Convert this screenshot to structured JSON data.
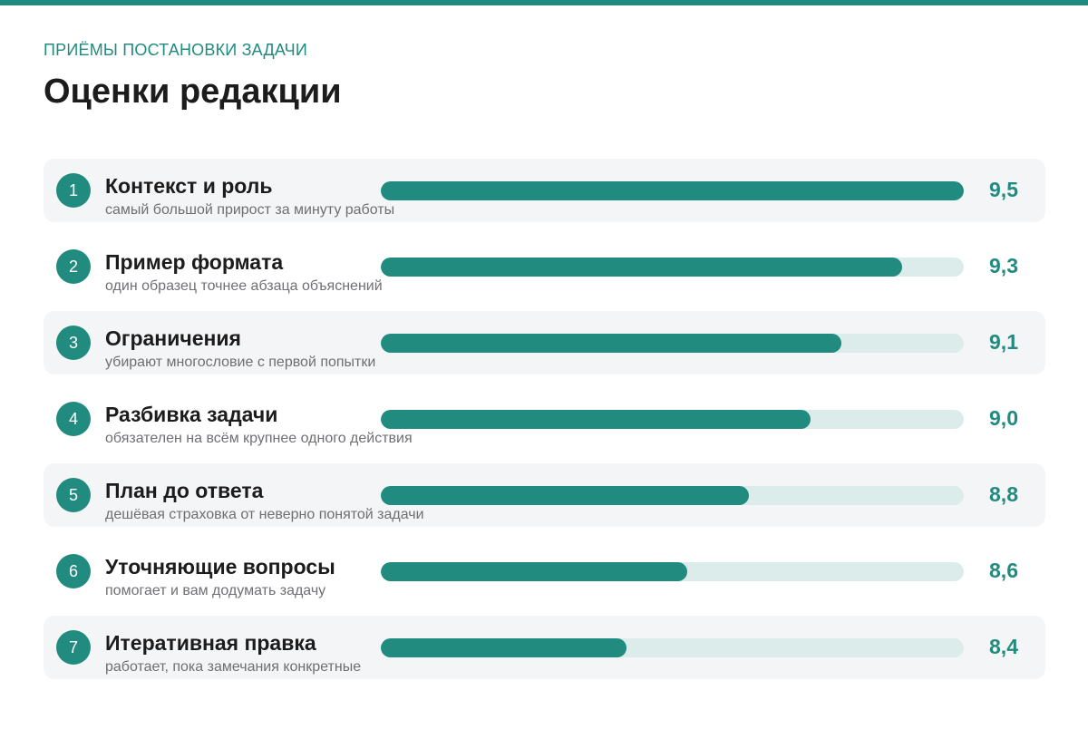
{
  "header": {
    "eyebrow": "ПРИЁМЫ ПОСТАНОВКИ ЗАДАЧИ",
    "title": "Оценки редакции"
  },
  "colors": {
    "accent": "#218b7f",
    "track": "#dcecea",
    "row_shade": "#f4f5f7"
  },
  "chart_data": {
    "type": "bar",
    "orientation": "horizontal",
    "title": "Оценки редакции",
    "categories": [
      "Контекст и роль",
      "Пример формата",
      "Ограничения",
      "Разбивка задачи",
      "План до ответа",
      "Уточняющие вопросы",
      "Итеративная правка"
    ],
    "values": [
      9.5,
      9.3,
      9.1,
      9.0,
      8.8,
      8.6,
      8.4
    ],
    "xlim": [
      7.6,
      9.5
    ],
    "grid": false,
    "items": [
      {
        "rank": "1",
        "title": "Контекст и роль",
        "subtitle": "самый большой прирост за минуту работы",
        "score_label": "9,5",
        "value": 9.5
      },
      {
        "rank": "2",
        "title": "Пример формата",
        "subtitle": "один образец точнее абзаца объяснений",
        "score_label": "9,3",
        "value": 9.3
      },
      {
        "rank": "3",
        "title": "Ограничения",
        "subtitle": "убирают многословие с первой попытки",
        "score_label": "9,1",
        "value": 9.1
      },
      {
        "rank": "4",
        "title": "Разбивка задачи",
        "subtitle": "обязателен на всём крупнее одного действия",
        "score_label": "9,0",
        "value": 9.0
      },
      {
        "rank": "5",
        "title": "План до ответа",
        "subtitle": "дешёвая страховка от неверно понятой задачи",
        "score_label": "8,8",
        "value": 8.8
      },
      {
        "rank": "6",
        "title": "Уточняющие вопросы",
        "subtitle": "помогает и вам додумать задачу",
        "score_label": "8,6",
        "value": 8.6
      },
      {
        "rank": "7",
        "title": "Итеративная правка",
        "subtitle": "работает, пока замечания конкретные",
        "score_label": "8,4",
        "value": 8.4
      }
    ]
  }
}
